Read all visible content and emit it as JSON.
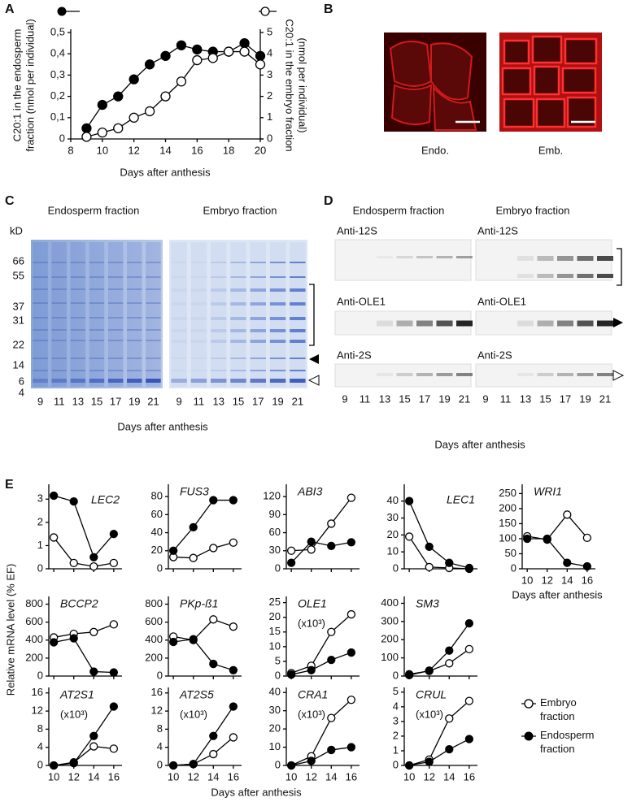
{
  "panel_labels": [
    "A",
    "B",
    "C",
    "D",
    "E"
  ],
  "panel_b": {
    "labels": [
      "Endo.",
      "Emb."
    ]
  },
  "panel_c": {
    "headers": [
      "Endosperm fraction",
      "Embryo fraction"
    ],
    "kd_label": "kD",
    "kd_markers": [
      66,
      55,
      37,
      31,
      22,
      14,
      6,
      4
    ],
    "lanes": [
      9,
      11,
      13,
      15,
      17,
      19,
      21
    ],
    "xlabel": "Days after anthesis"
  },
  "panel_d": {
    "headers": [
      "Endosperm fraction",
      "Embryo fraction"
    ],
    "blots": [
      "Anti-12S",
      "Anti-OLE1",
      "Anti-2S"
    ],
    "lanes": [
      9,
      11,
      13,
      15,
      17,
      19,
      21
    ],
    "xlabel": "Days after anthesis"
  },
  "panel_e": {
    "ylabel": "Relative  mRNA level (% EF)",
    "xlabel": "Days after anthesis"
  },
  "chart_data": [
    {
      "type": "line",
      "xlabel": "Days after anthesis",
      "ylabel": [
        "C20:1 in the endosperm",
        "fraction (nmol per individual)"
      ],
      "y2label": [
        "C20:1 in the embryo fraction",
        "(nmol per individual)"
      ],
      "x": [
        9,
        10,
        11,
        12,
        13,
        14,
        15,
        16,
        17,
        18,
        19,
        20
      ],
      "xlim": [
        8,
        20
      ],
      "xticks": [
        8,
        10,
        12,
        14,
        16,
        18,
        20
      ],
      "ylim": [
        0,
        0.5
      ],
      "yticks": [
        0,
        {
          "value": 0.1,
          "label": "0,1"
        },
        {
          "value": 0.2,
          "label": "0,2"
        },
        {
          "value": 0.3,
          "label": "0,3"
        },
        {
          "value": 0.4,
          "label": "0,4"
        },
        {
          "value": 0.5,
          "label": "0,5"
        }
      ],
      "y2lim": [
        0,
        5
      ],
      "y2ticks": [
        0,
        1,
        2,
        3,
        4,
        5
      ],
      "series": [
        {
          "color": "#000000",
          "values": [
            0.05,
            0.16,
            0.2,
            0.28,
            0.35,
            0.39,
            0.44,
            0.42,
            0.41,
            0.41,
            0.45,
            0.39
          ]
        },
        {
          "color": "#ffffff",
          "axis": "y2",
          "values": [
            0.1,
            0.3,
            0.5,
            1.0,
            1.3,
            2.0,
            2.7,
            3.7,
            3.8,
            4.1,
            4.1,
            3.5
          ]
        }
      ]
    },
    {
      "type": "line",
      "title": "LEC2",
      "x": [
        10,
        12,
        14,
        16
      ],
      "xlim": [
        9.5,
        16.5
      ],
      "xticks": [
        10,
        12,
        14,
        16
      ],
      "ylim": [
        0,
        3.5
      ],
      "yticks": [
        0,
        1,
        2,
        3
      ],
      "series": [
        {
          "name": "Embryo fraction",
          "color": "#ffffff",
          "values": [
            1.35,
            0.25,
            0.1,
            0.25
          ]
        },
        {
          "name": "Endosperm fraction",
          "color": "#000000",
          "values": [
            3.15,
            2.9,
            0.5,
            1.5
          ]
        }
      ]
    },
    {
      "type": "line",
      "title": "FUS3",
      "x": [
        10,
        12,
        14,
        16
      ],
      "xlim": [
        9.5,
        16.5
      ],
      "xticks": [
        10,
        12,
        14,
        16
      ],
      "ylim": [
        0,
        90
      ],
      "yticks": [
        0,
        20,
        40,
        60,
        80
      ],
      "series": [
        {
          "name": "Embryo fraction",
          "color": "#ffffff",
          "values": [
            13,
            12,
            23,
            29
          ]
        },
        {
          "name": "Endosperm fraction",
          "color": "#000000",
          "values": [
            20,
            46,
            76,
            76
          ]
        }
      ]
    },
    {
      "type": "line",
      "title": "ABI3",
      "x": [
        10,
        12,
        14,
        16
      ],
      "xlim": [
        9.5,
        16.5
      ],
      "xticks": [
        10,
        12,
        14,
        16
      ],
      "ylim": [
        0,
        135
      ],
      "yticks": [
        0,
        30,
        60,
        90,
        120
      ],
      "series": [
        {
          "name": "Embryo fraction",
          "color": "#ffffff",
          "values": [
            30,
            32,
            75,
            118
          ]
        },
        {
          "name": "Endosperm fraction",
          "color": "#000000",
          "values": [
            10,
            45,
            38,
            44
          ]
        }
      ]
    },
    {
      "type": "line",
      "title": "LEC1",
      "x": [
        10,
        12,
        14,
        16
      ],
      "xlim": [
        9.5,
        16.5
      ],
      "xticks": [
        10,
        12,
        14,
        16
      ],
      "ylim": [
        0,
        48
      ],
      "yticks": [
        0,
        10,
        20,
        30,
        40
      ],
      "series": [
        {
          "name": "Embryo fraction",
          "color": "#ffffff",
          "values": [
            19,
            1,
            0.5,
            0
          ]
        },
        {
          "name": "Endosperm fraction",
          "color": "#000000",
          "values": [
            40,
            13,
            3.5,
            0.5
          ]
        }
      ]
    },
    {
      "type": "line",
      "title": "WRI1",
      "xlabel": "Days after anthesis",
      "x": [
        10,
        12,
        14,
        16
      ],
      "xlim": [
        9.5,
        16.5
      ],
      "xticks": [
        10,
        12,
        14,
        16
      ],
      "ylim": [
        0,
        270
      ],
      "yticks": [
        0,
        50,
        100,
        150,
        200,
        250
      ],
      "series": [
        {
          "name": "Embryo fraction",
          "color": "#ffffff",
          "values": [
            108,
            97,
            180,
            103
          ]
        },
        {
          "name": "Endosperm fraction",
          "color": "#000000",
          "values": [
            100,
            100,
            20,
            8
          ]
        }
      ]
    },
    {
      "type": "line",
      "title": "BCCP2",
      "x": [
        10,
        12,
        14,
        16
      ],
      "xlim": [
        9.5,
        16.5
      ],
      "xticks": [
        10,
        12,
        14,
        16
      ],
      "ylim": [
        0,
        850
      ],
      "yticks": [
        0,
        200,
        400,
        600,
        800
      ],
      "series": [
        {
          "name": "Embryo fraction",
          "color": "#ffffff",
          "values": [
            430,
            470,
            490,
            575
          ]
        },
        {
          "name": "Endosperm fraction",
          "color": "#000000",
          "values": [
            375,
            420,
            50,
            40
          ]
        }
      ]
    },
    {
      "type": "line",
      "title": "PKp-ß1",
      "x": [
        10,
        12,
        14,
        16
      ],
      "xlim": [
        9.5,
        16.5
      ],
      "xticks": [
        10,
        12,
        14,
        16
      ],
      "ylim": [
        0,
        850
      ],
      "yticks": [
        0,
        200,
        400,
        600,
        800
      ],
      "series": [
        {
          "name": "Embryo fraction",
          "color": "#ffffff",
          "values": [
            440,
            400,
            630,
            550
          ]
        },
        {
          "name": "Endosperm fraction",
          "color": "#000000",
          "values": [
            380,
            410,
            135,
            65
          ]
        }
      ]
    },
    {
      "type": "line",
      "title": "OLE1",
      "annotation": "(x10³)",
      "x": [
        10,
        12,
        14,
        16
      ],
      "xlim": [
        9.5,
        16.5
      ],
      "xticks": [
        10,
        12,
        14,
        16
      ],
      "ylim": [
        0,
        26
      ],
      "yticks": [
        0,
        5,
        10,
        15,
        20,
        25
      ],
      "series": [
        {
          "name": "Embryo fraction",
          "color": "#ffffff",
          "values": [
            1,
            3.5,
            15,
            21
          ]
        },
        {
          "name": "Endosperm fraction",
          "color": "#000000",
          "values": [
            0.5,
            2,
            5.5,
            8
          ]
        }
      ]
    },
    {
      "type": "line",
      "title": "SM3",
      "x": [
        10,
        12,
        14,
        16
      ],
      "xlim": [
        9.5,
        16.5
      ],
      "xticks": [
        10,
        12,
        14,
        16
      ],
      "ylim": [
        0,
        420
      ],
      "yticks": [
        0,
        100,
        200,
        300,
        400
      ],
      "series": [
        {
          "name": "Embryo fraction",
          "color": "#ffffff",
          "values": [
            10,
            28,
            70,
            148
          ]
        },
        {
          "name": "Endosperm fraction",
          "color": "#000000",
          "values": [
            5,
            30,
            140,
            290
          ]
        }
      ]
    },
    {
      "type": "line",
      "title": "AT2S1",
      "annotation": "(x10³)",
      "x": [
        10,
        12,
        14,
        16
      ],
      "xlim": [
        9.5,
        16.5
      ],
      "xticks": [
        10,
        12,
        14,
        16
      ],
      "ylim": [
        0,
        16.5
      ],
      "yticks": [
        0,
        4,
        8,
        12,
        16
      ],
      "series": [
        {
          "name": "Embryo fraction",
          "color": "#ffffff",
          "values": [
            0,
            0.7,
            4.2,
            3.7
          ]
        },
        {
          "name": "Endosperm fraction",
          "color": "#000000",
          "values": [
            0,
            0.5,
            6.5,
            13
          ]
        }
      ]
    },
    {
      "type": "line",
      "title": "AT2S5",
      "annotation": "(x10³)",
      "x": [
        10,
        12,
        14,
        16
      ],
      "xlim": [
        9.5,
        16.5
      ],
      "xticks": [
        10,
        12,
        14,
        16
      ],
      "ylim": [
        0,
        16.5
      ],
      "yticks": [
        0,
        4,
        8,
        12,
        16
      ],
      "series": [
        {
          "name": "Embryo fraction",
          "color": "#ffffff",
          "values": [
            0,
            0.3,
            2.5,
            6.2
          ]
        },
        {
          "name": "Endosperm fraction",
          "color": "#000000",
          "values": [
            0,
            0.3,
            6.5,
            13
          ]
        }
      ]
    },
    {
      "type": "line",
      "title": "CRA1",
      "annotation": "(x10³)",
      "x": [
        10,
        12,
        14,
        16
      ],
      "xlim": [
        9.5,
        16.5
      ],
      "xticks": [
        10,
        12,
        14,
        16
      ],
      "ylim": [
        0,
        41
      ],
      "yticks": [
        0,
        10,
        20,
        30,
        40
      ],
      "series": [
        {
          "name": "Embryo fraction",
          "color": "#ffffff",
          "values": [
            0,
            5,
            26,
            36
          ]
        },
        {
          "name": "Endosperm fraction",
          "color": "#000000",
          "values": [
            0,
            2.5,
            8.5,
            10
          ]
        }
      ]
    },
    {
      "type": "line",
      "title": "CRUL",
      "annotation": "(x10³)",
      "x": [
        10,
        12,
        14,
        16
      ],
      "xlim": [
        9.5,
        16.5
      ],
      "xticks": [
        10,
        12,
        14,
        16
      ],
      "ylim": [
        0,
        5.1
      ],
      "yticks": [
        0,
        1,
        2,
        3,
        4,
        5
      ],
      "series": [
        {
          "name": "Embryo fraction",
          "color": "#ffffff",
          "values": [
            0,
            0.4,
            3.2,
            4.4
          ]
        },
        {
          "name": "Endosperm fraction",
          "color": "#000000",
          "values": [
            0,
            0.25,
            1.1,
            1.8
          ]
        }
      ]
    }
  ]
}
